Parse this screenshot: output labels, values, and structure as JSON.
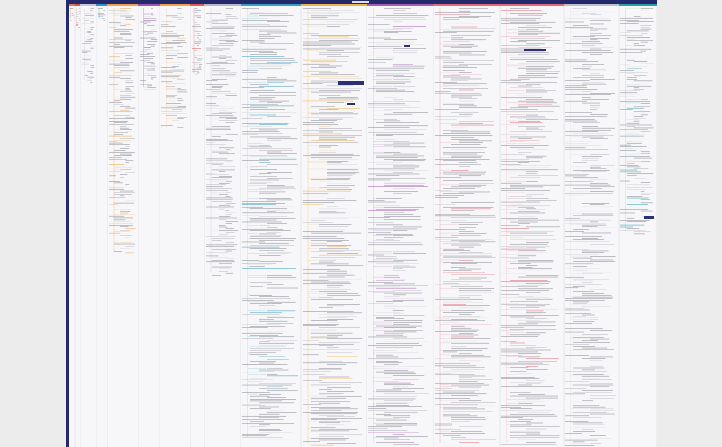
{
  "columns": [
    {
      "color": "#e0784e"
    },
    {
      "color": "#d9534f"
    },
    {
      "color": "#c9c9d6"
    },
    {
      "color": "#3b8fd0"
    },
    {
      "color": "#f0a24a"
    },
    {
      "color": "#9b59b6"
    },
    {
      "color": "#f0a24a"
    },
    {
      "color": "#e05c5c"
    },
    {
      "color": "#b8b8c8"
    },
    {
      "color": "#3a9fc0"
    },
    {
      "color": "#f0b050"
    },
    {
      "color": "#a55fb5"
    },
    {
      "color": "#e06a7a"
    },
    {
      "color": "#e06a7a"
    },
    {
      "color": "#c0c0cc"
    },
    {
      "color": "#2aa0a8"
    }
  ]
}
